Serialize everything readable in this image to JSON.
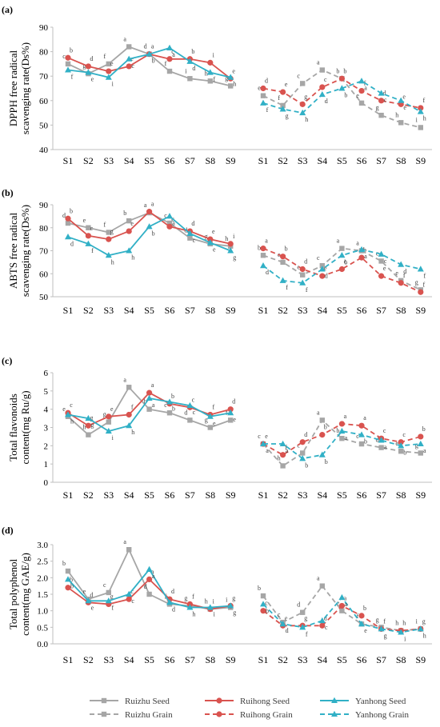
{
  "colors": {
    "ruizhu": "#a6a6a6",
    "ruihong": "#d9534f",
    "yanhong": "#31b0c6",
    "axis": "#bfbfbf",
    "letters": "#404040"
  },
  "legend": {
    "entries": [
      {
        "label": "Ruizhu Seed",
        "series": "ruizhu",
        "dashed": false,
        "marker": "square"
      },
      {
        "label": "Ruihong Seed",
        "series": "ruihong",
        "dashed": false,
        "marker": "circle"
      },
      {
        "label": "Yanhong Seed",
        "series": "yanhong",
        "dashed": false,
        "marker": "triangle"
      },
      {
        "label": "Ruizhu Grain",
        "series": "ruizhu",
        "dashed": true,
        "marker": "square"
      },
      {
        "label": "Ruihong Grain",
        "series": "ruihong",
        "dashed": true,
        "marker": "circle"
      },
      {
        "label": "Yanhong Grain",
        "series": "yanhong",
        "dashed": true,
        "marker": "triangle"
      }
    ]
  },
  "chart_data": [
    {
      "panel": "(a)",
      "type": "line",
      "ylabel_lines": [
        "DPPH free radical",
        "scavenging rate(Ds%)"
      ],
      "ylim": [
        40,
        90
      ],
      "yticks": [
        40,
        50,
        60,
        70,
        80,
        90
      ],
      "tick_decimals": 0,
      "categories_seed": [
        "S1",
        "S2",
        "S3",
        "S4",
        "S5",
        "S6",
        "S7",
        "S8",
        "S9"
      ],
      "categories_grain": [
        "S1",
        "S2",
        "S3",
        "S4",
        "S5",
        "S6",
        "S7",
        "S8",
        "S9"
      ],
      "series": [
        {
          "name": "Ruizhu Seed",
          "key": "ruizhu",
          "group": "seed",
          "values": [
            75,
            71,
            75,
            82,
            79,
            72,
            69,
            68,
            66
          ],
          "letters": [
            "c",
            "g",
            "f",
            "a",
            "d",
            "f",
            "i",
            "h",
            "g"
          ]
        },
        {
          "name": "Ruihong Seed",
          "key": "ruihong",
          "group": "seed",
          "values": [
            77.5,
            74,
            72,
            74,
            79,
            77,
            77,
            75.5,
            69
          ],
          "letters": [
            "b",
            "d",
            "e",
            "e",
            "a",
            "c",
            "b",
            "i",
            "e"
          ]
        },
        {
          "name": "Yanhong Seed",
          "key": "yanhong",
          "group": "seed",
          "values": [
            72.5,
            71.5,
            69.5,
            77,
            79,
            81.5,
            76,
            71.5,
            69.5
          ],
          "letters": [
            "f",
            "e",
            "i",
            "c",
            "b",
            "a",
            "d",
            "f",
            "h"
          ]
        },
        {
          "name": "Ruizhu Grain",
          "key": "ruizhu",
          "group": "grain",
          "values": [
            62,
            58,
            67,
            72.5,
            69,
            59,
            54,
            51,
            49
          ],
          "letters": [
            "e",
            "f",
            "c",
            "a",
            "b",
            "e",
            "g",
            "h",
            "i"
          ]
        },
        {
          "name": "Ruihong Grain",
          "key": "ruihong",
          "group": "grain",
          "values": [
            65,
            63.5,
            58.5,
            65.5,
            69,
            64,
            60,
            58.5,
            57
          ],
          "letters": [
            "d",
            "e",
            "g",
            "c",
            "b",
            "f",
            "d",
            "e",
            "f"
          ]
        },
        {
          "name": "Yanhong Grain",
          "key": "yanhong",
          "group": "grain",
          "values": [
            59,
            56.5,
            55,
            62.5,
            65,
            68,
            63,
            60,
            55.5
          ],
          "letters": [
            "f",
            "g",
            "h",
            "d",
            "b",
            "a",
            "c",
            "e",
            "h"
          ]
        }
      ]
    },
    {
      "panel": "(b)",
      "type": "line",
      "ylabel_lines": [
        "ABTS free radical",
        "scavenging rate(Ds%)"
      ],
      "ylim": [
        50,
        90
      ],
      "yticks": [
        50,
        60,
        70,
        80,
        90
      ],
      "tick_decimals": 0,
      "categories_seed": [
        "S1",
        "S2",
        "S3",
        "S4",
        "S5",
        "S6",
        "S7",
        "S8",
        "S9"
      ],
      "categories_grain": [
        "S1",
        "S2",
        "S3",
        "S4",
        "S5",
        "S6",
        "S7",
        "S8",
        "S9"
      ],
      "series": [
        {
          "name": "Ruizhu Seed",
          "key": "ruizhu",
          "group": "seed",
          "values": [
            82,
            80,
            78,
            83,
            86.5,
            82,
            75.5,
            73,
            72
          ],
          "letters": [
            "d",
            "e",
            "f",
            "b",
            "a",
            "c",
            "d",
            "g",
            "h"
          ]
        },
        {
          "name": "Ruihong Seed",
          "key": "ruihong",
          "group": "seed",
          "values": [
            84,
            76.5,
            75,
            78.5,
            87,
            80.5,
            78.5,
            75,
            73
          ],
          "letters": [
            "b",
            "c",
            "g",
            "e",
            "a",
            "c",
            "d",
            "e",
            "i"
          ]
        },
        {
          "name": "Yanhong Seed",
          "key": "yanhong",
          "group": "seed",
          "values": [
            76,
            73,
            68,
            70,
            80.5,
            85,
            77.5,
            73.5,
            70
          ],
          "letters": [
            "d",
            "f",
            "h",
            "h",
            "b",
            "a",
            "c",
            "e",
            "g"
          ]
        },
        {
          "name": "Ruizhu Grain",
          "key": "ruizhu",
          "group": "grain",
          "values": [
            68,
            65,
            59.5,
            63.5,
            71,
            70,
            65.5,
            57,
            53
          ],
          "letters": [
            "b",
            "c",
            "e",
            "c",
            "a",
            "a",
            "c",
            "e",
            "g"
          ]
        },
        {
          "name": "Ruihong Grain",
          "key": "ruihong",
          "group": "grain",
          "values": [
            71,
            67.5,
            62,
            59,
            62,
            67,
            59,
            56,
            52
          ],
          "letters": [
            "a",
            "b",
            "d",
            "e",
            "c",
            "b",
            "e",
            "f",
            "f"
          ]
        },
        {
          "name": "Yanhong Grain",
          "key": "yanhong",
          "group": "grain",
          "values": [
            63.5,
            57,
            56,
            62,
            68,
            70.5,
            68.5,
            64,
            62
          ],
          "letters": [
            "d",
            "f",
            "f",
            "d",
            "b",
            "a",
            "c",
            "d",
            "f"
          ]
        }
      ]
    },
    {
      "panel": "(c)",
      "type": "line",
      "ylabel_lines": [
        "Total flavonoids",
        "content(mg Ru/g)"
      ],
      "ylim": [
        0,
        6
      ],
      "yticks": [
        0,
        1,
        2,
        3,
        4,
        5,
        6
      ],
      "tick_decimals": 0,
      "categories_seed": [
        "S1",
        "S2",
        "S3",
        "S4",
        "S5",
        "S6",
        "S7",
        "S8",
        "S9"
      ],
      "categories_grain": [
        "S1",
        "S2",
        "S3",
        "S4",
        "S5",
        "S6",
        "S7",
        "S8",
        "S9"
      ],
      "series": [
        {
          "name": "Ruizhu Seed",
          "key": "ruizhu",
          "group": "seed",
          "values": [
            3.6,
            2.6,
            3.3,
            5.2,
            4.0,
            3.8,
            3.4,
            3.0,
            3.4
          ],
          "letters": [
            "e",
            "h",
            "g",
            "a",
            "b",
            "c",
            "d",
            "g",
            "f"
          ]
        },
        {
          "name": "Ruihong Seed",
          "key": "ruihong",
          "group": "seed",
          "values": [
            3.8,
            3.1,
            3.6,
            3.7,
            4.9,
            4.3,
            4.1,
            3.7,
            4.0
          ],
          "letters": [
            "c",
            "g",
            "e",
            "f",
            "a",
            "b",
            "c",
            "f",
            "d"
          ]
        },
        {
          "name": "Yanhong Seed",
          "key": "yanhong",
          "group": "seed",
          "values": [
            3.7,
            3.5,
            2.8,
            3.1,
            4.6,
            4.4,
            4.2,
            3.6,
            3.8
          ],
          "letters": [
            "h",
            "g",
            "i",
            "h",
            "a",
            "b",
            "c",
            "e",
            "e"
          ]
        },
        {
          "name": "Ruizhu Grain",
          "key": "ruizhu",
          "group": "grain",
          "values": [
            2.1,
            0.9,
            1.6,
            3.4,
            2.4,
            2.1,
            1.9,
            1.7,
            1.6
          ],
          "letters": [
            "c",
            "h",
            "c",
            "a",
            "b",
            "c",
            "d",
            "e",
            "g"
          ]
        },
        {
          "name": "Ruihong Grain",
          "key": "ruihong",
          "group": "grain",
          "values": [
            2.1,
            1.5,
            2.2,
            2.6,
            3.2,
            3.1,
            2.4,
            2.2,
            2.5
          ],
          "letters": [
            "e",
            "f",
            "d",
            "b",
            "a",
            "a",
            "c",
            "c",
            "b"
          ]
        },
        {
          "name": "Yanhong Grain",
          "key": "yanhong",
          "group": "grain",
          "values": [
            2.1,
            2.1,
            1.3,
            1.5,
            2.8,
            2.6,
            2.3,
            2.0,
            2.1
          ],
          "letters": [
            "a",
            "a",
            "b",
            "b",
            "a",
            "b",
            "a",
            "b",
            "a"
          ]
        }
      ]
    },
    {
      "panel": "(d)",
      "type": "line",
      "ylabel_lines": [
        "Total polyphenol",
        "content(mg GAE/g)"
      ],
      "ylim": [
        0,
        3
      ],
      "yticks": [
        0,
        0.5,
        1,
        1.5,
        2,
        2.5,
        3
      ],
      "tick_decimals": 1,
      "categories_seed": [
        "S1",
        "S2",
        "S3",
        "S4",
        "S5",
        "S6",
        "S7",
        "S8",
        "S9"
      ],
      "categories_grain": [
        "S1",
        "S2",
        "S3",
        "S4",
        "S5",
        "S6",
        "S7",
        "S8",
        "S9"
      ],
      "series": [
        {
          "name": "Ruizhu Seed",
          "key": "ruizhu",
          "group": "seed",
          "values": [
            2.2,
            1.35,
            1.55,
            2.85,
            1.5,
            1.2,
            1.15,
            1.05,
            1.1
          ],
          "letters": [
            "b",
            "e",
            "c",
            "a",
            "d",
            "f",
            "g",
            "h",
            "i"
          ]
        },
        {
          "name": "Ruihong Seed",
          "key": "ruihong",
          "group": "seed",
          "values": [
            1.7,
            1.25,
            1.2,
            1.35,
            1.95,
            1.35,
            1.2,
            1.05,
            1.15
          ],
          "letters": [
            "b",
            "d",
            "g",
            "c",
            "a",
            "d",
            "f",
            "i",
            "g"
          ]
        },
        {
          "name": "Yanhong Seed",
          "key": "yanhong",
          "group": "seed",
          "values": [
            1.95,
            1.3,
            1.3,
            1.5,
            2.25,
            1.25,
            1.1,
            1.1,
            1.15
          ],
          "letters": [
            "b",
            "e",
            "f",
            "c",
            "a",
            "d",
            "h",
            "i",
            "g"
          ]
        },
        {
          "name": "Ruizhu Grain",
          "key": "ruizhu",
          "group": "grain",
          "values": [
            1.45,
            0.65,
            0.95,
            1.75,
            1.0,
            0.6,
            0.5,
            0.4,
            0.45
          ],
          "letters": [
            "b",
            "c",
            "d",
            "a",
            "e",
            "f",
            "g",
            "h",
            "i"
          ]
        },
        {
          "name": "Ruihong Grain",
          "key": "ruihong",
          "group": "grain",
          "values": [
            1.0,
            0.55,
            0.55,
            0.55,
            1.15,
            0.85,
            0.45,
            0.4,
            0.45
          ],
          "letters": [
            "c",
            "e",
            "g",
            "d",
            "a",
            "b",
            "f",
            "h",
            "g"
          ]
        },
        {
          "name": "Yanhong Grain",
          "key": "yanhong",
          "group": "grain",
          "values": [
            1.2,
            0.6,
            0.5,
            0.7,
            1.4,
            0.6,
            0.45,
            0.35,
            0.45
          ],
          "letters": [
            "b",
            "d",
            "f",
            "c",
            "a",
            "e",
            "g",
            "i",
            "h"
          ]
        }
      ]
    }
  ]
}
